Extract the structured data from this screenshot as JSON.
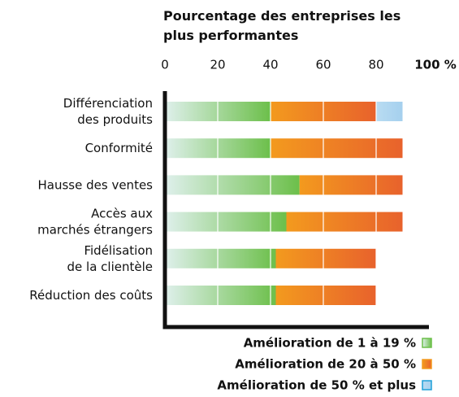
{
  "chart_data": {
    "type": "stacked_barh",
    "title": "Pourcentage des entreprises les plus performantes",
    "categories": [
      [
        "Différenciation",
        "des produits"
      ],
      [
        "Conformité"
      ],
      [
        "Hausse des ventes"
      ],
      [
        "Accès aux",
        "marchés étrangers"
      ],
      [
        "Fidélisation",
        "de la clientèle"
      ],
      [
        "Réduction des coûts"
      ]
    ],
    "series": [
      {
        "name": "Amélioration de 1 à 19 %",
        "color": "#6cbf4a",
        "values": [
          40,
          40,
          51,
          46,
          42,
          42
        ]
      },
      {
        "name": "Amélioration de 20 à 50 %",
        "color": "#f39a1e",
        "values": [
          40,
          50,
          39,
          44,
          38,
          38
        ]
      },
      {
        "name": "Amélioration de 50 % et plus",
        "color": "#1ea0d8",
        "values": [
          10,
          null,
          null,
          null,
          null,
          null
        ]
      }
    ],
    "xlim": [
      0,
      100
    ],
    "xticks": [
      0,
      20,
      40,
      60,
      80,
      {
        "value": 100,
        "label": "100 %"
      }
    ],
    "grid": true
  }
}
